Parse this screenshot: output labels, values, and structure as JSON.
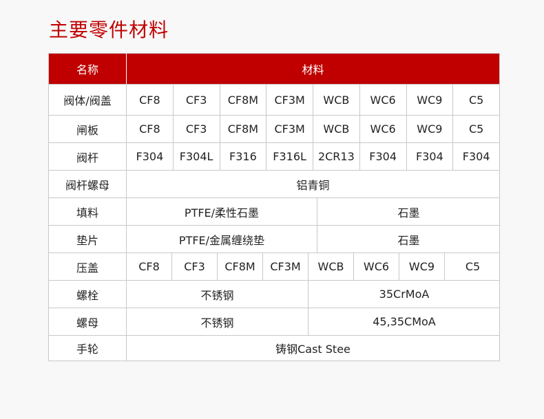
{
  "title": "主要零件材料",
  "header": {
    "name": "名称",
    "material": "材料"
  },
  "theme": {
    "accent": "#c00000"
  },
  "rows": [
    {
      "name": "阀体/阀盖",
      "cells": [
        "CF8",
        "CF3",
        "CF8M",
        "CF3M",
        "WCB",
        "WC6",
        "WC9",
        "C5"
      ]
    },
    {
      "name": "闸板",
      "cells": [
        "CF8",
        "CF3",
        "CF8M",
        "CF3M",
        "WCB",
        "WC6",
        "WC9",
        "C5"
      ]
    },
    {
      "name": "阀杆",
      "cells": [
        "F304",
        "F304L",
        "F316",
        "F316L",
        "2CR13",
        "F304",
        "F304",
        "F304"
      ]
    },
    {
      "name": "阀杆螺母",
      "cells": [
        "铝青铜"
      ]
    },
    {
      "name": "填料",
      "cells": [
        "PTFE/柔性石墨",
        "石墨"
      ]
    },
    {
      "name": "垫片",
      "cells": [
        "PTFE/金属缠绕垫",
        "石墨"
      ]
    },
    {
      "name": "压盖",
      "cells": [
        "CF8",
        "CF3",
        "CF8M",
        "CF3M",
        "WCB",
        "WC6",
        "WC9",
        "C5"
      ]
    },
    {
      "name": "螺栓",
      "cells": [
        "不锈钢",
        "35CrMoA"
      ]
    },
    {
      "name": "螺母",
      "cells": [
        "不锈钢",
        "45,35CMoA"
      ]
    },
    {
      "name": "手轮",
      "cells": [
        "铸钢Cast Stee"
      ]
    }
  ]
}
